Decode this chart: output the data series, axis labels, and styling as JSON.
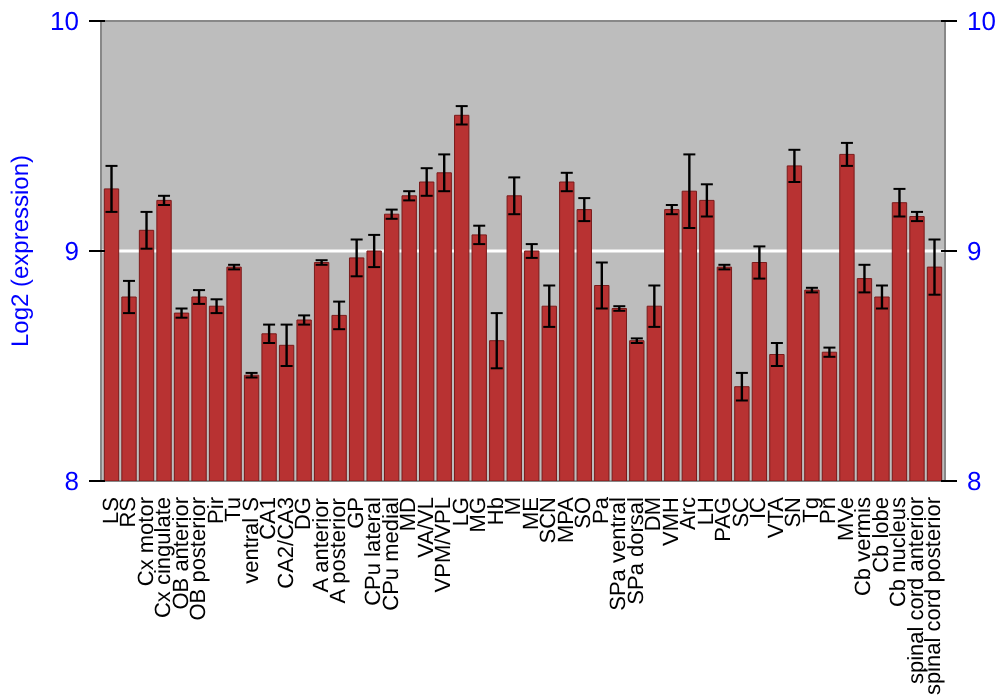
{
  "chart_data": {
    "type": "bar",
    "ylabel": "Log2 (expression)",
    "categories": [
      "LS",
      "RS",
      "Cx motor",
      "Cx cingulate",
      "OB anterior",
      "OB posterior",
      "Pir",
      "Tu",
      "ventral S",
      "CA1",
      "CA2/CA3",
      "DG",
      "A anterior",
      "A posterior",
      "GP",
      "CPu lateral",
      "CPu medial",
      "MD",
      "VA/VL",
      "VPM/VPL",
      "LG",
      "MG",
      "Hb",
      "M",
      "ME",
      "SCN",
      "MPA",
      "SO",
      "Pa",
      "SPa ventral",
      "SPa dorsal",
      "DM",
      "VMH",
      "Arc",
      "LH",
      "PAG",
      "SC",
      "IC",
      "VTA",
      "SN",
      "Tg",
      "Pn",
      "MVe",
      "Cb vermis",
      "Cb lobe",
      "Cb nucleus",
      "spinal cord anterior",
      "spinal cord posterior"
    ],
    "values": [
      9.27,
      8.8,
      9.09,
      9.22,
      8.73,
      8.8,
      8.76,
      8.93,
      8.46,
      8.64,
      8.59,
      8.7,
      8.95,
      8.72,
      8.97,
      9.0,
      9.16,
      9.24,
      9.3,
      9.34,
      9.59,
      9.07,
      8.61,
      9.24,
      9.0,
      8.76,
      9.3,
      9.18,
      8.85,
      8.75,
      8.61,
      8.76,
      9.18,
      9.26,
      9.22,
      8.93,
      8.41,
      8.95,
      8.55,
      9.37,
      8.83,
      8.56,
      9.42,
      8.88,
      8.8,
      9.21,
      9.15,
      8.93
    ],
    "errors": [
      0.1,
      0.07,
      0.08,
      0.02,
      0.02,
      0.03,
      0.03,
      0.01,
      0.01,
      0.04,
      0.09,
      0.02,
      0.01,
      0.06,
      0.08,
      0.07,
      0.02,
      0.02,
      0.06,
      0.08,
      0.04,
      0.04,
      0.12,
      0.08,
      0.03,
      0.09,
      0.04,
      0.05,
      0.1,
      0.01,
      0.01,
      0.09,
      0.02,
      0.16,
      0.07,
      0.01,
      0.06,
      0.07,
      0.05,
      0.07,
      0.01,
      0.02,
      0.05,
      0.06,
      0.05,
      0.06,
      0.02,
      0.12
    ],
    "color": "#b83232",
    "ylim": [
      8,
      10
    ],
    "yticks": [
      8,
      9,
      10
    ],
    "y2lim": [
      8,
      10
    ],
    "y2ticks": [
      8,
      9,
      10
    ],
    "grid": "y"
  }
}
